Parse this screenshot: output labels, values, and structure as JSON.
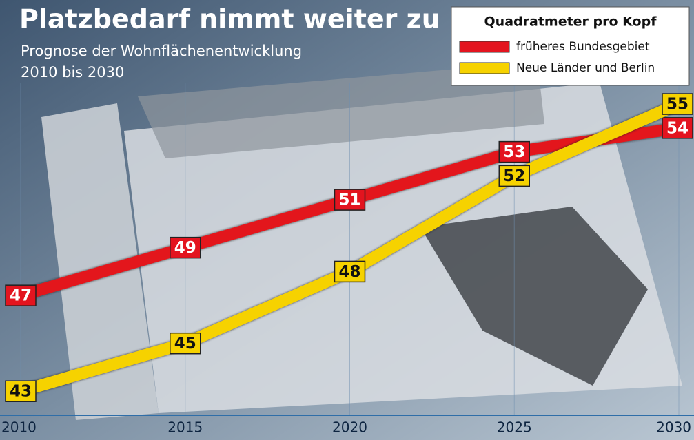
{
  "chart_data": {
    "type": "line",
    "title": "Platzbedarf nimmt weiter zu",
    "subtitle": [
      "Prognose der Wohnflächenentwicklung",
      "2010 bis 2030"
    ],
    "legend_title": "Quadratmeter pro Kopf",
    "legend": "upper right",
    "x": [
      2010,
      2015,
      2020,
      2025,
      2030
    ],
    "xlim": [
      2010,
      2030
    ],
    "xticks": [
      2010,
      2015,
      2020,
      2025,
      2030
    ],
    "ylim": [
      42,
      59
    ],
    "series": [
      {
        "name": "früheres Bundesgebiet",
        "color": "#e3141f",
        "text_color": "#ffffff",
        "values": [
          47,
          49,
          51,
          53,
          54
        ]
      },
      {
        "name": "Neue Länder und Berlin",
        "color": "#f6d200",
        "text_color": "#111111",
        "values": [
          43,
          45,
          48,
          52,
          55
        ]
      }
    ]
  }
}
